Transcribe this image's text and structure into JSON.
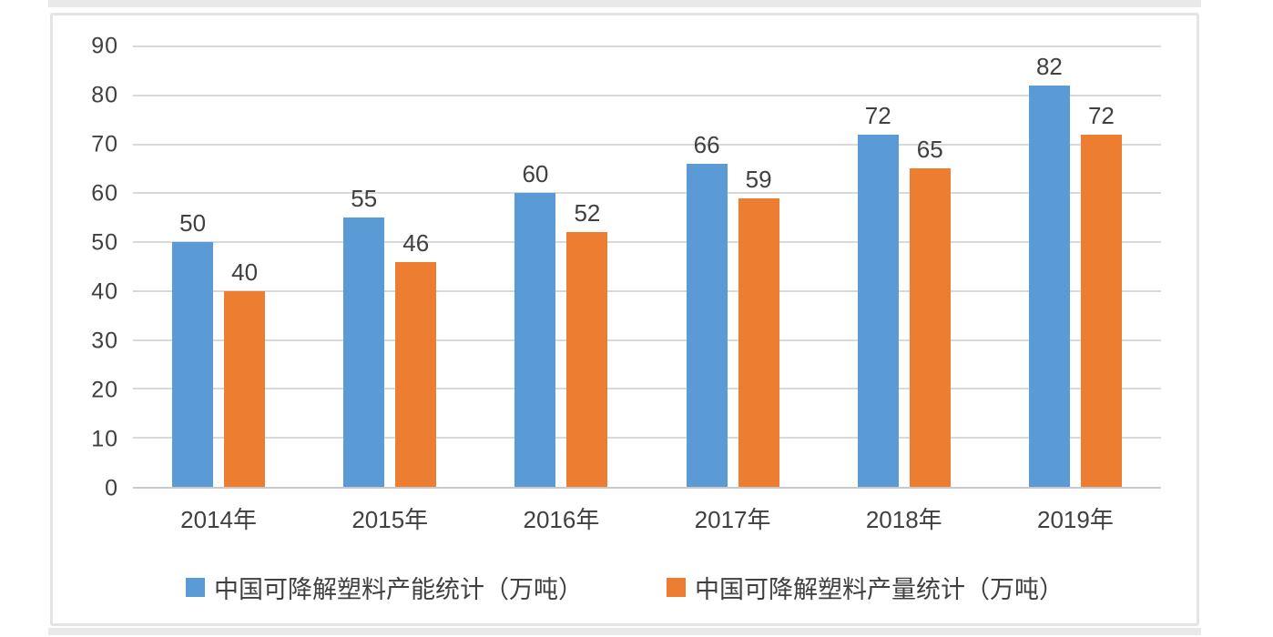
{
  "chart_data": {
    "type": "bar",
    "title": "",
    "xlabel": "",
    "ylabel": "",
    "categories": [
      "2014年",
      "2015年",
      "2016年",
      "2017年",
      "2018年",
      "2019年"
    ],
    "series": [
      {
        "name": "中国可降解塑料产能统计（万吨）",
        "color": "#5B9BD5",
        "values": [
          50,
          55,
          60,
          66,
          72,
          82
        ]
      },
      {
        "name": "中国可降解塑料产量统计（万吨）",
        "color": "#ED7D31",
        "values": [
          40,
          46,
          52,
          59,
          65,
          72
        ]
      }
    ],
    "ylim": [
      0,
      90
    ],
    "y_ticks": [
      0,
      10,
      20,
      30,
      40,
      50,
      60,
      70,
      80,
      90
    ],
    "grid": true,
    "gridline_color": "#d9d9d9",
    "axis_line_color": "#c9c9c9",
    "text_color": "#404040",
    "legend_position": "bottom",
    "data_labels_shown": true
  }
}
